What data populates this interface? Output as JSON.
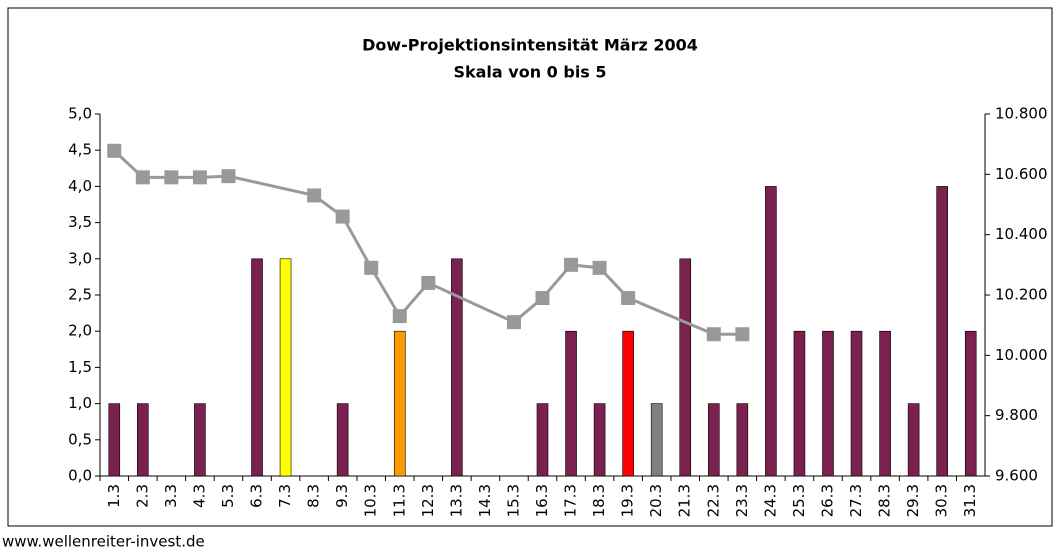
{
  "chart_data": {
    "type": "bar",
    "title": "Dow-Projektionsintensität März 2004",
    "subtitle": "Skala von 0 bis 5",
    "footer": "www.wellenreiter-invest.de",
    "categories": [
      "1.3",
      "2.3",
      "3.3",
      "4.3",
      "5.3",
      "6.3",
      "7.3",
      "8.3",
      "9.3",
      "10.3",
      "11.3",
      "12.3",
      "13.3",
      "14.3",
      "15.3",
      "16.3",
      "17.3",
      "18.3",
      "19.3",
      "20.3",
      "21.3",
      "22.3",
      "23.3",
      "24.3",
      "25.3",
      "26.3",
      "27.3",
      "28.3",
      "29.3",
      "30.3",
      "31.3"
    ],
    "series": [
      {
        "type": "bar",
        "values": [
          1,
          1,
          0,
          1,
          0,
          3,
          3,
          0,
          1,
          0,
          2,
          0,
          3,
          0,
          0,
          1,
          2,
          1,
          2,
          1,
          3,
          1,
          1,
          4,
          2,
          2,
          2,
          2,
          1,
          4,
          2
        ],
        "colors": [
          "#7b2150",
          "#7b2150",
          "#7b2150",
          "#7b2150",
          "#7b2150",
          "#7b2150",
          "#ffff00",
          "#7b2150",
          "#7b2150",
          "#7b2150",
          "#ff9900",
          "#7b2150",
          "#7b2150",
          "#7b2150",
          "#7b2150",
          "#7b2150",
          "#7b2150",
          "#7b2150",
          "#ff0000",
          "#808080",
          "#7b2150",
          "#7b2150",
          "#7b2150",
          "#7b2150",
          "#7b2150",
          "#7b2150",
          "#7b2150",
          "#7b2150",
          "#7b2150",
          "#7b2150",
          "#7b2150"
        ]
      },
      {
        "type": "line",
        "axis": "y2",
        "color": "#999999",
        "span_gaps": true,
        "values": [
          10678,
          10590,
          10590,
          10590,
          10594,
          null,
          null,
          10530,
          10460,
          10290,
          10130,
          10240,
          null,
          null,
          10110,
          10190,
          10300,
          10290,
          10190,
          null,
          null,
          10070,
          10070,
          null,
          null,
          null,
          null,
          null,
          null,
          null,
          null
        ]
      }
    ],
    "ylim": [
      0,
      5
    ],
    "yticks": [
      {
        "value": 0,
        "label": "0,0"
      },
      {
        "value": 0.5,
        "label": "0,5"
      },
      {
        "value": 1,
        "label": "1,0"
      },
      {
        "value": 1.5,
        "label": "1,5"
      },
      {
        "value": 2,
        "label": "2,0"
      },
      {
        "value": 2.5,
        "label": "2,5"
      },
      {
        "value": 3,
        "label": "3,0"
      },
      {
        "value": 3.5,
        "label": "3,5"
      },
      {
        "value": 4,
        "label": "4,0"
      },
      {
        "value": 4.5,
        "label": "4,5"
      },
      {
        "value": 5,
        "label": "5,0"
      }
    ],
    "y2lim": [
      9600,
      10800
    ],
    "y2ticks": [
      {
        "value": 9600,
        "label": "9.600"
      },
      {
        "value": 9800,
        "label": "9.800"
      },
      {
        "value": 10000,
        "label": "10.000"
      },
      {
        "value": 10200,
        "label": "10.200"
      },
      {
        "value": 10400,
        "label": "10.400"
      },
      {
        "value": 10600,
        "label": "10.600"
      },
      {
        "value": 10800,
        "label": "10.800"
      }
    ],
    "grid": false
  }
}
